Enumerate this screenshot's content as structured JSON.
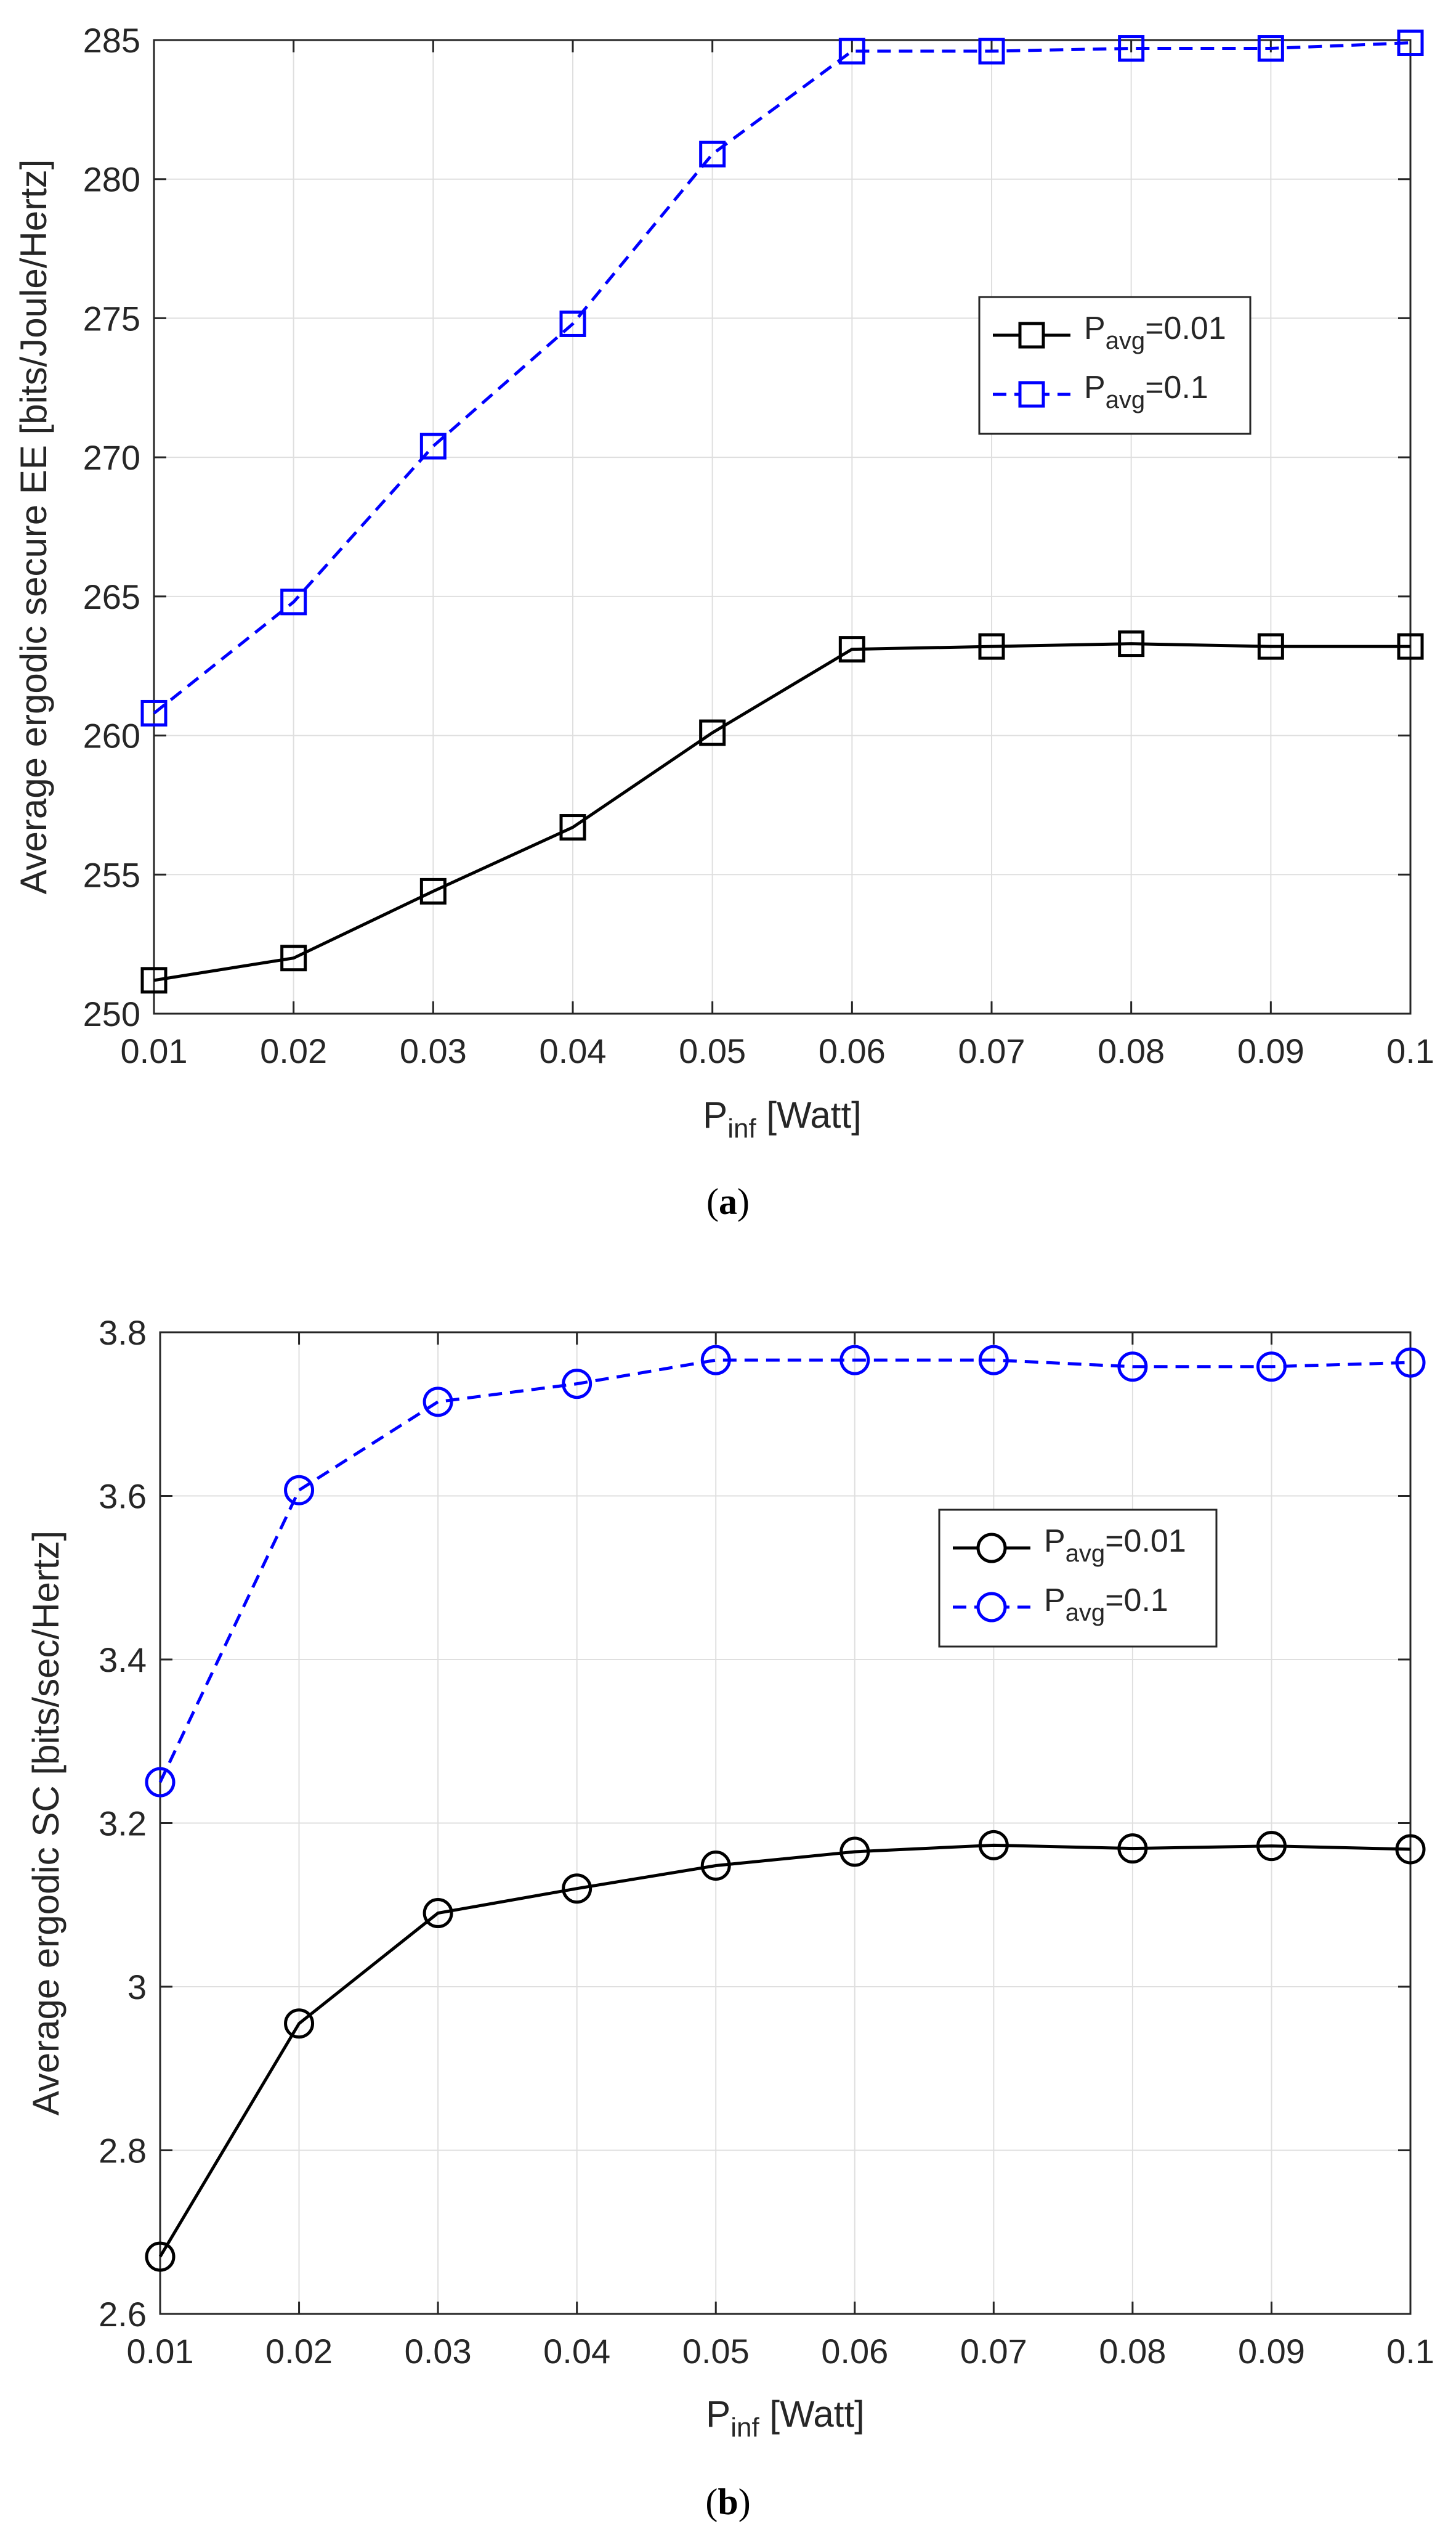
{
  "chart_data": [
    {
      "type": "line",
      "panel_label": "a",
      "title": "",
      "xlabel": {
        "main": "P",
        "sub": "inf",
        "rest": " [Watt]"
      },
      "ylabel": "Average ergodic secure EE [bits/Joule/Hertz]",
      "xlim": [
        0.01,
        0.1
      ],
      "ylim": [
        250,
        285
      ],
      "x_ticks": [
        "0.01",
        "0.02",
        "0.03",
        "0.04",
        "0.05",
        "0.06",
        "0.07",
        "0.08",
        "0.09",
        "0.1"
      ],
      "y_ticks": [
        "250",
        "255",
        "260",
        "265",
        "270",
        "275",
        "280",
        "285"
      ],
      "y_tick_values": [
        250,
        255,
        260,
        265,
        270,
        275,
        280,
        285
      ],
      "grid": true,
      "legend_position": "upper-right",
      "marker": "square",
      "x": [
        0.01,
        0.02,
        0.03,
        0.04,
        0.05,
        0.06,
        0.07,
        0.08,
        0.09,
        0.1
      ],
      "series": [
        {
          "name_main": "P",
          "name_sub": "avg",
          "name_rest": "=0.01",
          "color": "#000000",
          "dash": "solid",
          "values": [
            251.2,
            252.0,
            254.4,
            256.7,
            260.1,
            263.1,
            263.2,
            263.3,
            263.2,
            263.2
          ]
        },
        {
          "name_main": "P",
          "name_sub": "avg",
          "name_rest": "=0.1",
          "color": "#0000FF",
          "dash": "dashed",
          "values": [
            260.8,
            264.8,
            270.4,
            274.8,
            280.9,
            284.6,
            284.6,
            284.7,
            284.7,
            284.9
          ]
        }
      ]
    },
    {
      "type": "line",
      "panel_label": "b",
      "title": "",
      "xlabel": {
        "main": "P",
        "sub": "inf",
        "rest": " [Watt]"
      },
      "ylabel": "Average ergodic SC [bits/sec/Hertz]",
      "xlim": [
        0.01,
        0.1
      ],
      "ylim": [
        2.6,
        3.8
      ],
      "x_ticks": [
        "0.01",
        "0.02",
        "0.03",
        "0.04",
        "0.05",
        "0.06",
        "0.07",
        "0.08",
        "0.09",
        "0.1"
      ],
      "y_ticks": [
        "2.6",
        "2.8",
        "3",
        "3.2",
        "3.4",
        "3.6",
        "3.8"
      ],
      "y_tick_values": [
        2.6,
        2.8,
        3.0,
        3.2,
        3.4,
        3.6,
        3.8
      ],
      "grid": true,
      "legend_position": "upper-right",
      "marker": "circle",
      "x": [
        0.01,
        0.02,
        0.03,
        0.04,
        0.05,
        0.06,
        0.07,
        0.08,
        0.09,
        0.1
      ],
      "series": [
        {
          "name_main": "P",
          "name_sub": "avg",
          "name_rest": "=0.01",
          "color": "#000000",
          "dash": "solid",
          "values": [
            2.67,
            2.955,
            3.09,
            3.12,
            3.148,
            3.165,
            3.173,
            3.169,
            3.172,
            3.168
          ]
        },
        {
          "name_main": "P",
          "name_sub": "avg",
          "name_rest": "=0.1",
          "color": "#0000FF",
          "dash": "dashed",
          "values": [
            3.25,
            3.607,
            3.715,
            3.737,
            3.766,
            3.766,
            3.766,
            3.758,
            3.758,
            3.763
          ]
        }
      ]
    }
  ]
}
